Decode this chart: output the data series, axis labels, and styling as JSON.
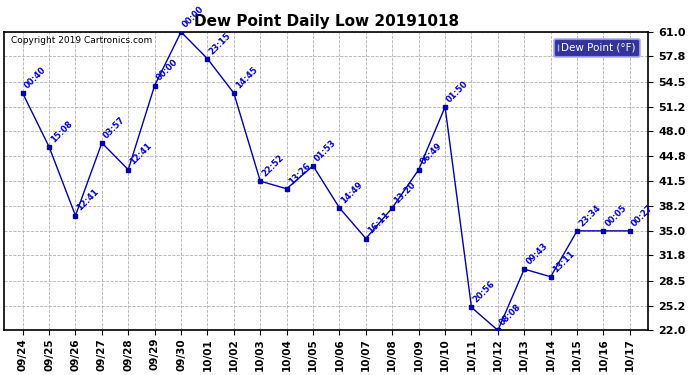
{
  "title": "Dew Point Daily Low 20191018",
  "copyright": "Copyright 2019 Cartronics.com",
  "legend_label": "Dew Point (°F)",
  "dates": [
    "09/24",
    "09/25",
    "09/26",
    "09/27",
    "09/28",
    "09/29",
    "09/30",
    "10/01",
    "10/02",
    "10/03",
    "10/04",
    "10/05",
    "10/06",
    "10/07",
    "10/08",
    "10/09",
    "10/10",
    "10/11",
    "10/12",
    "10/13",
    "10/14",
    "10/15",
    "10/16",
    "10/17"
  ],
  "values": [
    53.0,
    46.0,
    37.0,
    46.5,
    43.0,
    54.0,
    61.0,
    57.5,
    53.0,
    41.5,
    40.5,
    43.5,
    38.0,
    34.0,
    38.0,
    43.0,
    51.2,
    25.0,
    22.0,
    30.0,
    29.0,
    35.0,
    35.0,
    35.0
  ],
  "labels": [
    "00:40",
    "15:08",
    "12:41",
    "03:57",
    "12:41",
    "00:00",
    "00:00",
    "23:15",
    "14:45",
    "22:52",
    "13:26",
    "01:53",
    "14:49",
    "16:11",
    "13:20",
    "06:49",
    "01:50",
    "20:56",
    "08:08",
    "09:43",
    "13:11",
    "23:34",
    "00:05",
    "00:27"
  ],
  "ylim": [
    22.0,
    61.0
  ],
  "yticks": [
    22.0,
    25.2,
    28.5,
    31.8,
    35.0,
    38.2,
    41.5,
    44.8,
    48.0,
    51.2,
    54.5,
    57.8,
    61.0
  ],
  "line_color": "#0000aa",
  "marker_color": "#000066",
  "label_color": "#0000cc",
  "bg_color": "#ffffff",
  "grid_color": "#b0b0b0",
  "title_color": "#000000",
  "copyright_color": "#000000",
  "legend_bg": "#000080",
  "legend_text": "#ffffff",
  "figwidth": 6.9,
  "figheight": 3.75,
  "dpi": 100
}
